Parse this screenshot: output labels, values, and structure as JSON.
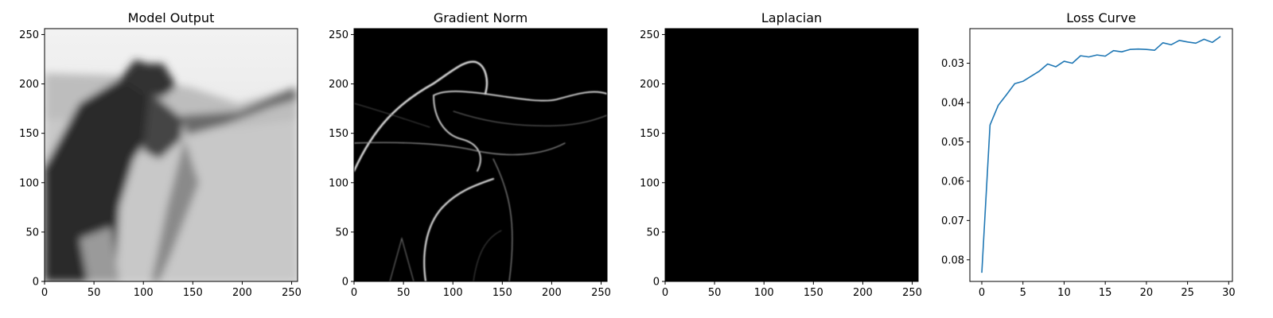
{
  "chart_data": [
    {
      "type": "image",
      "title": "Model Output",
      "colormap": "gray",
      "x_ticks": [
        0,
        50,
        100,
        150,
        200,
        250
      ],
      "y_ticks": [
        0,
        50,
        100,
        150,
        200,
        250
      ],
      "xlim": [
        0,
        256
      ],
      "ylim": [
        256,
        0
      ]
    },
    {
      "type": "image",
      "title": "Gradient Norm",
      "colormap": "gray",
      "x_ticks": [
        0,
        50,
        100,
        150,
        200,
        250
      ],
      "y_ticks": [
        0,
        50,
        100,
        150,
        200,
        250
      ],
      "xlim": [
        0,
        256
      ],
      "ylim": [
        256,
        0
      ]
    },
    {
      "type": "image",
      "title": "Laplacian",
      "colormap": "gray",
      "x_ticks": [
        0,
        50,
        100,
        150,
        200,
        250
      ],
      "y_ticks": [
        0,
        50,
        100,
        150,
        200,
        250
      ],
      "xlim": [
        0,
        256
      ],
      "ylim": [
        256,
        0
      ]
    },
    {
      "type": "line",
      "title": "Loss Curve",
      "x_ticks": [
        0,
        5,
        10,
        15,
        20,
        25,
        30
      ],
      "y_ticks": [
        0.03,
        0.04,
        0.05,
        0.06,
        0.07,
        0.08
      ],
      "xlim": [
        -1.45,
        30.45
      ],
      "ylim": [
        0.0212,
        0.0855
      ],
      "series": [
        {
          "color": "#1f77b4",
          "x": [
            0,
            1,
            2,
            3,
            4,
            5,
            6,
            7,
            8,
            9,
            10,
            11,
            12,
            13,
            14,
            15,
            16,
            17,
            18,
            19,
            20,
            21,
            22,
            23,
            24,
            25,
            26,
            27,
            28,
            29
          ],
          "values": [
            0.0833,
            0.0457,
            0.0407,
            0.038,
            0.0352,
            0.0346,
            0.0333,
            0.032,
            0.0302,
            0.0309,
            0.0295,
            0.03,
            0.0281,
            0.0284,
            0.0279,
            0.0282,
            0.0268,
            0.0271,
            0.0265,
            0.0264,
            0.0265,
            0.0267,
            0.0248,
            0.0253,
            0.0242,
            0.0246,
            0.0249,
            0.0239,
            0.0247,
            0.0232
          ]
        }
      ]
    }
  ],
  "colors": {
    "line": "#1f77b4",
    "background": "#ffffff",
    "laplacian_fill": "#000000",
    "gradient_fill": "#000000"
  }
}
